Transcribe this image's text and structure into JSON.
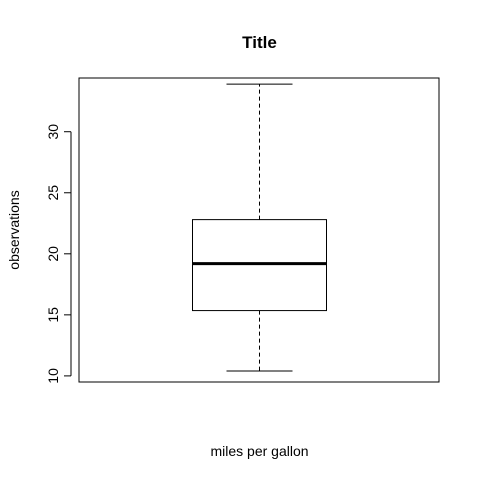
{
  "chart_data": {
    "type": "box",
    "title": "Title",
    "xlabel": "miles per gallon",
    "ylabel": "observations",
    "ylim": [
      9.5,
      34.4
    ],
    "yticks": [
      10,
      15,
      20,
      25,
      30
    ],
    "box": {
      "min": 10.4,
      "q1": 15.35,
      "median": 19.2,
      "q3": 22.8,
      "max": 33.9
    },
    "grid": false,
    "colors": {
      "box_fill": "#ffffff",
      "stroke": "#000000",
      "background": "#ffffff"
    }
  }
}
